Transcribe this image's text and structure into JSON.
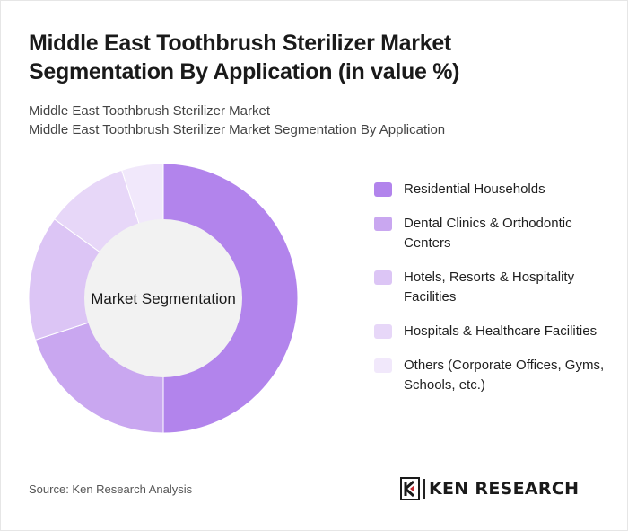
{
  "header": {
    "title": "Middle East Toothbrush Sterilizer Market Segmentation By Application (in value %)",
    "subtitle_line1": "Middle East Toothbrush Sterilizer Market",
    "subtitle_line2": "Middle East Toothbrush Sterilizer Market Segmentation By Application"
  },
  "chart_data": {
    "type": "pie",
    "center_label": "Market Segmentation",
    "categories": [
      "Residential Households",
      "Dental Clinics & Orthodontic Centers",
      "Hotels, Resorts & Hospitality Facilities",
      "Hospitals & Healthcare Facilities",
      "Others (Corporate Offices, Gyms, Schools, etc.)"
    ],
    "values": [
      50,
      20,
      15,
      10,
      5
    ],
    "colors": [
      "#b284ec",
      "#c9a7f0",
      "#dcc5f5",
      "#e7d7f8",
      "#f1e8fb"
    ],
    "legend_position": "right"
  },
  "footer": {
    "source": "Source: Ken Research Analysis",
    "logo_text": "KEN RESEARCH"
  }
}
